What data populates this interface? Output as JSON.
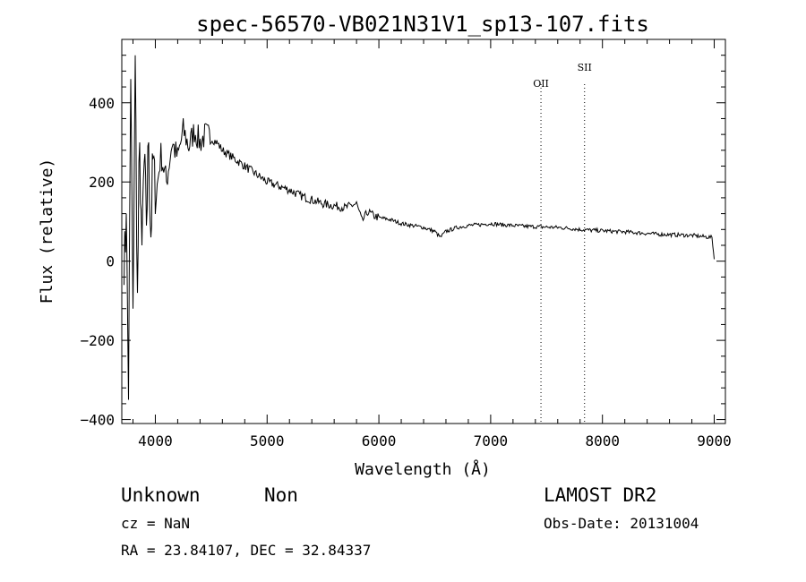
{
  "chart_data": {
    "type": "line",
    "title": "spec-56570-VB021N31V1_sp13-107.fits",
    "xlabel": "Wavelength (Å)",
    "ylabel": "Flux (relative)",
    "xlim": [
      3700,
      9100
    ],
    "ylim": [
      -410,
      560
    ],
    "x_ticks": [
      4000,
      5000,
      6000,
      7000,
      8000,
      9000
    ],
    "x_tick_labels": [
      "4000",
      "5000",
      "6000",
      "7000",
      "8000",
      "9000"
    ],
    "y_ticks": [
      -400,
      -200,
      0,
      200,
      400
    ],
    "y_tick_labels": [
      "−400",
      "−200",
      "0",
      "200",
      "400"
    ],
    "grid": false,
    "series": [
      {
        "name": "spectrum",
        "x": [
          3720,
          3740,
          3760,
          3780,
          3800,
          3820,
          3840,
          3860,
          3880,
          3900,
          3920,
          3940,
          3960,
          3980,
          4000,
          4050,
          4100,
          4150,
          4200,
          4250,
          4300,
          4350,
          4400,
          4450,
          4500,
          4550,
          4600,
          4650,
          4700,
          4800,
          4900,
          5000,
          5100,
          5200,
          5300,
          5400,
          5500,
          5600,
          5700,
          5800,
          5850,
          5900,
          5950,
          6000,
          6100,
          6200,
          6300,
          6400,
          6500,
          6550,
          6600,
          6700,
          6800,
          6900,
          7000,
          7100,
          7200,
          7300,
          7400,
          7500,
          7600,
          7700,
          7800,
          7900,
          8000,
          8100,
          8200,
          8300,
          8400,
          8500,
          8600,
          8700,
          8800,
          8900,
          8980,
          9000
        ],
        "y": [
          -60,
          120,
          -350,
          460,
          -120,
          520,
          -80,
          300,
          40,
          250,
          90,
          300,
          60,
          260,
          150,
          270,
          200,
          300,
          260,
          330,
          290,
          330,
          300,
          320,
          310,
          300,
          280,
          270,
          260,
          240,
          220,
          200,
          190,
          180,
          165,
          155,
          145,
          140,
          135,
          145,
          100,
          125,
          115,
          110,
          105,
          95,
          90,
          85,
          75,
          60,
          75,
          85,
          90,
          92,
          95,
          92,
          90,
          88,
          87,
          86,
          85,
          83,
          80,
          78,
          77,
          75,
          74,
          72,
          70,
          68,
          67,
          66,
          65,
          62,
          60,
          5
        ]
      }
    ],
    "lines": [
      {
        "label": "OII",
        "x": 7450
      },
      {
        "label": "SII",
        "x": 7840
      }
    ]
  },
  "info": {
    "classification": "Unknown",
    "subclass": "Non",
    "survey": "LAMOST DR2",
    "cz": "cz = NaN",
    "obs_date": "Obs-Date: 20131004",
    "coords": "RA =  23.84107, DEC =  32.84337"
  }
}
